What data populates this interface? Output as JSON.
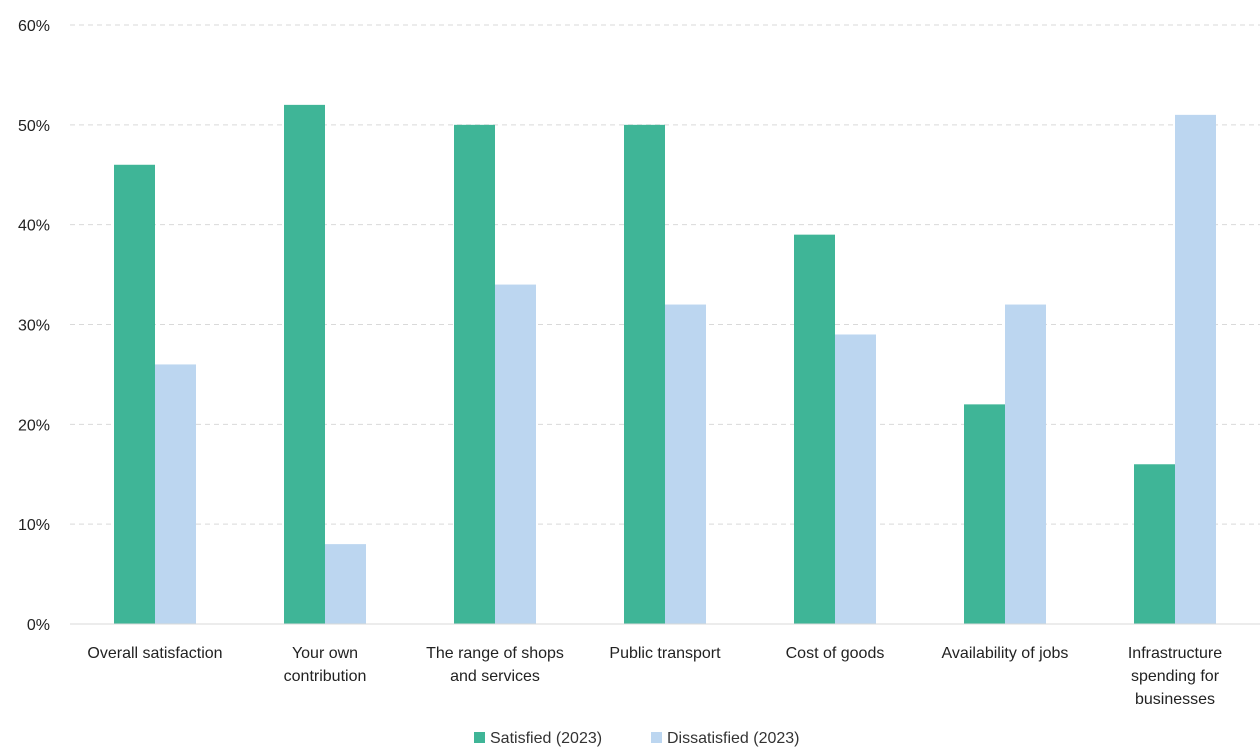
{
  "chart_data": {
    "type": "bar",
    "title": "",
    "xlabel": "",
    "ylabel": "",
    "categories": [
      [
        "Overall satisfaction"
      ],
      [
        "Your own",
        "contribution"
      ],
      [
        "The range of shops",
        "and services"
      ],
      [
        "Public transport"
      ],
      [
        "Cost of goods"
      ],
      [
        "Availability of jobs"
      ],
      [
        "Infrastructure",
        "spending for",
        "businesses"
      ]
    ],
    "series": [
      {
        "name": "Satisfied (2023)",
        "color": "#3fb597",
        "values": [
          46,
          52,
          50,
          50,
          39,
          22,
          16
        ]
      },
      {
        "name": "Dissatisfied (2023)",
        "color": "#bcd6f0",
        "values": [
          26,
          8,
          34,
          32,
          29,
          32,
          51
        ]
      }
    ],
    "ylim": [
      0,
      60
    ],
    "yticks": [
      0,
      10,
      20,
      30,
      40,
      50,
      60
    ],
    "ytick_labels": [
      "0%",
      "10%",
      "20%",
      "30%",
      "40%",
      "50%",
      "60%"
    ],
    "grid": true,
    "grid_color": "#d9d9d9",
    "legend_position": "bottom-center"
  }
}
